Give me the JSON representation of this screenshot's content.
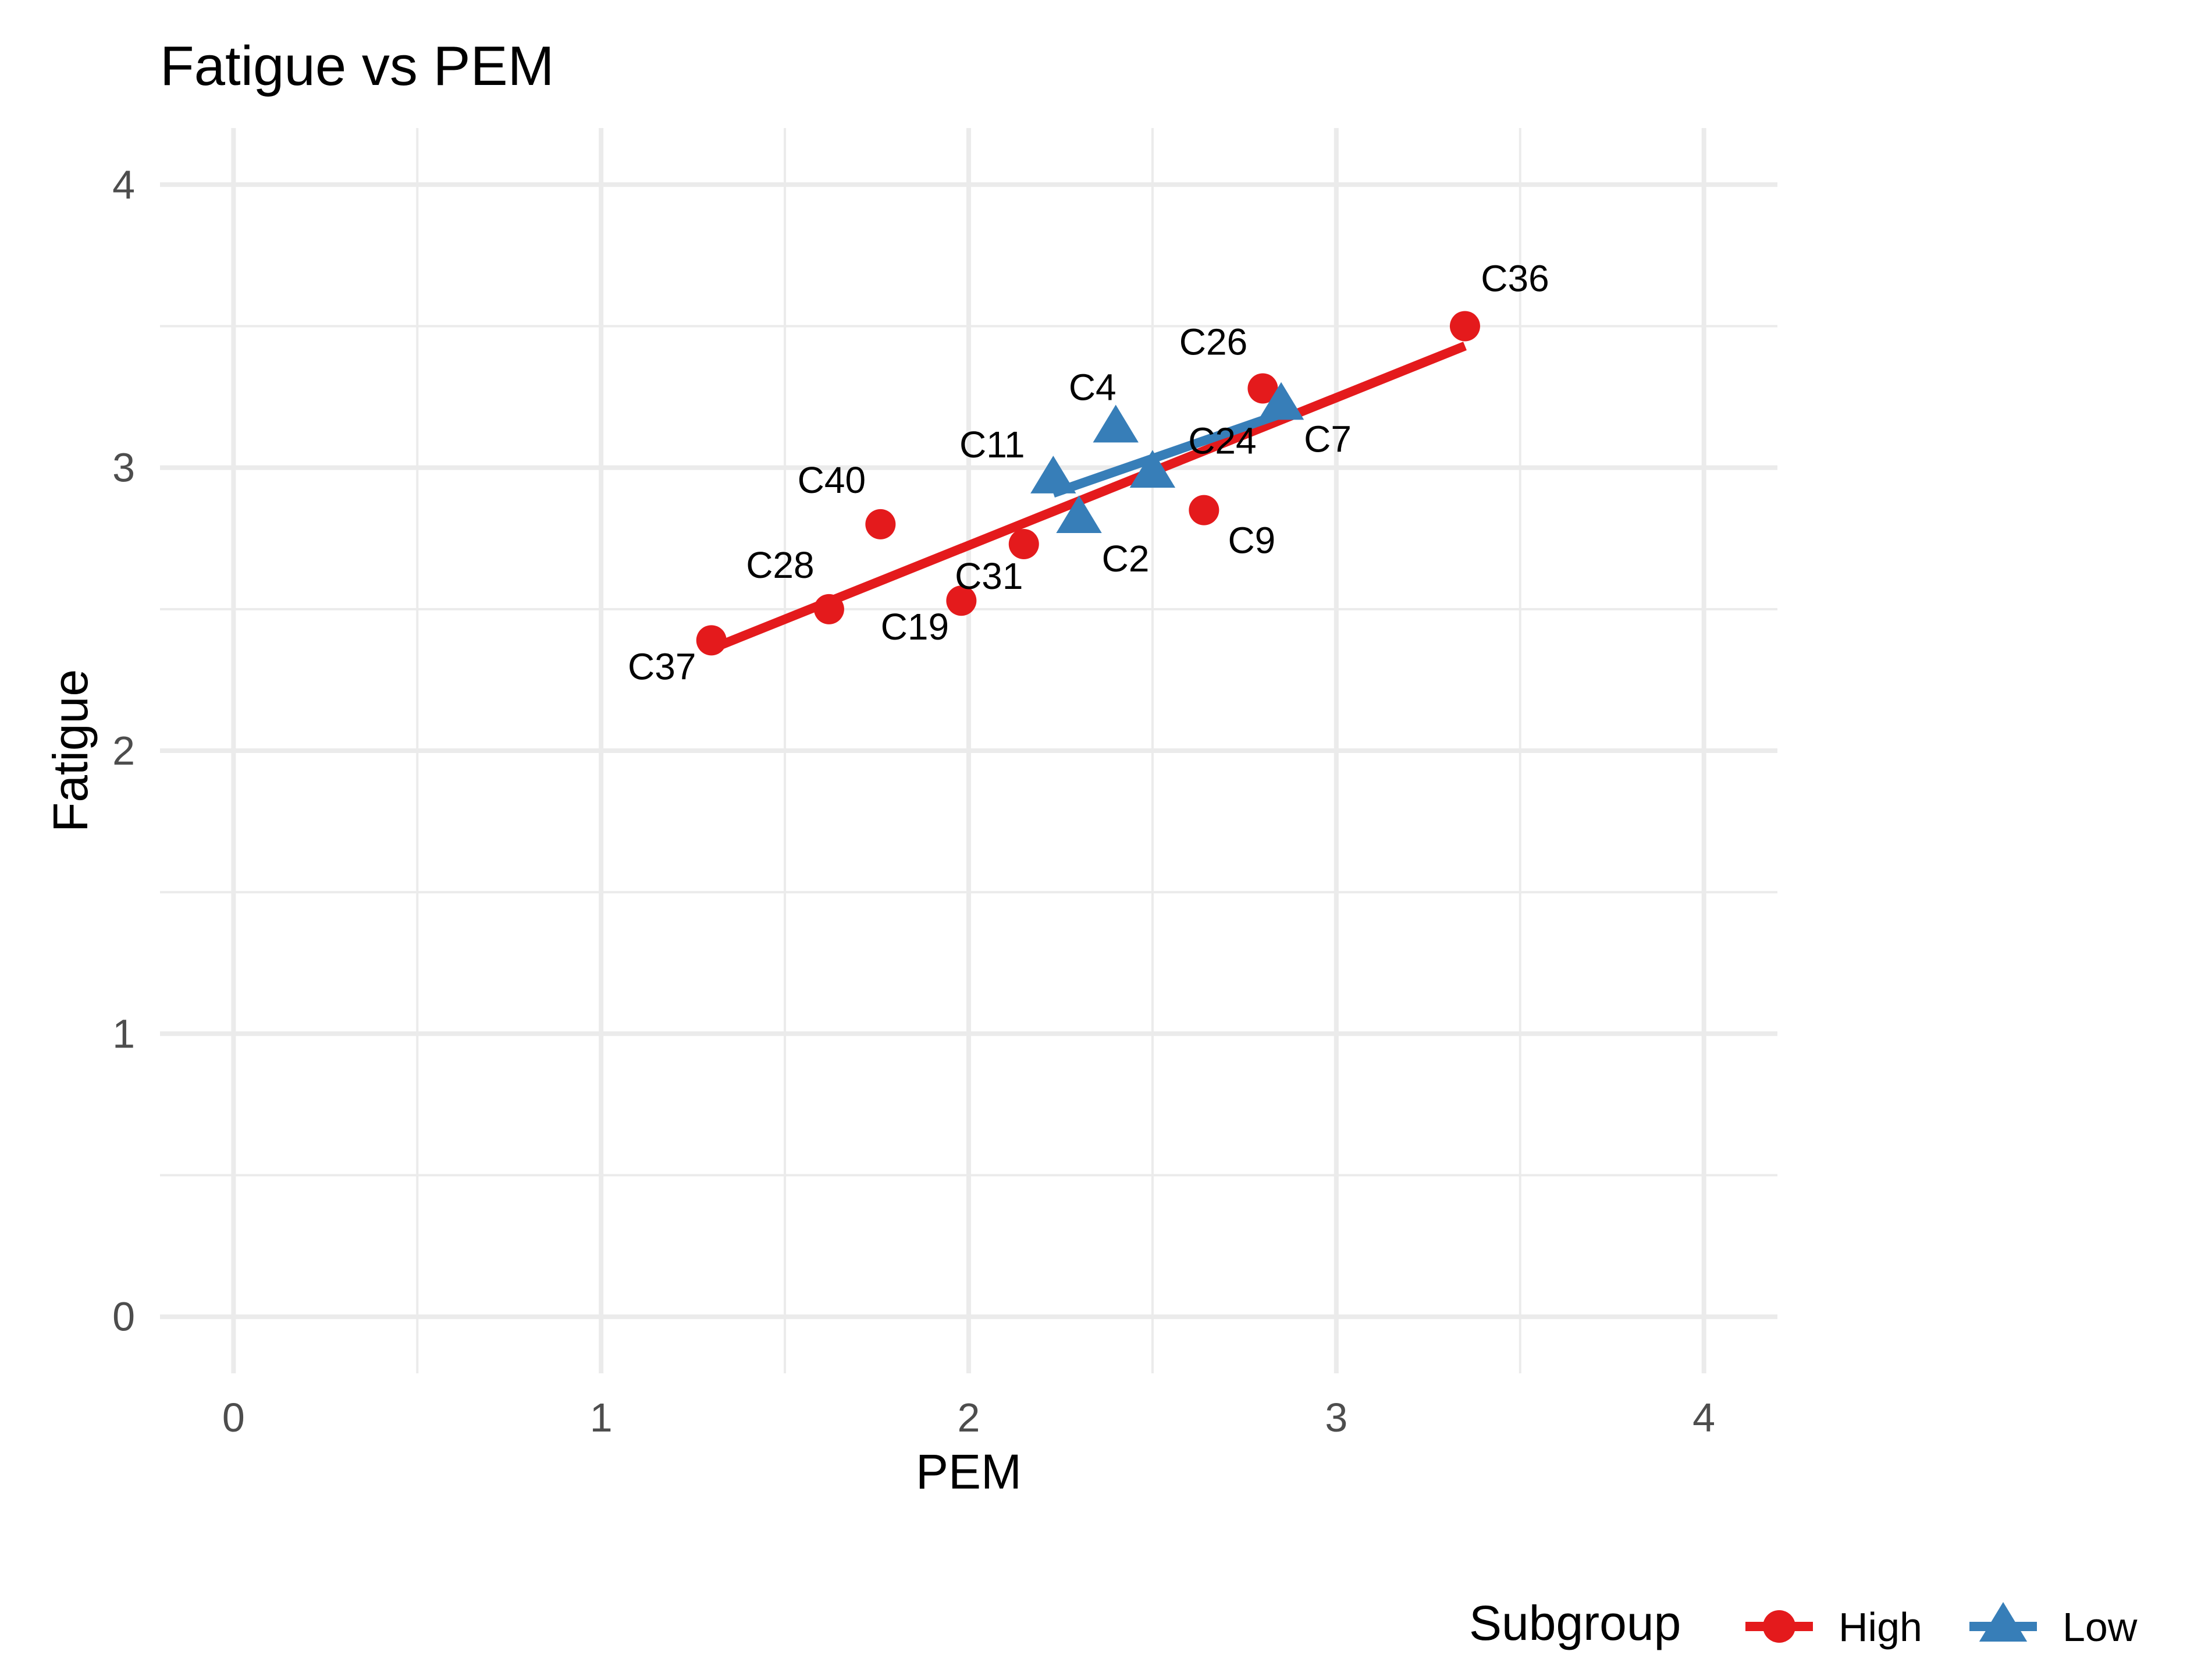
{
  "chart_data": {
    "type": "scatter",
    "title": "Fatigue vs PEM",
    "xlabel": "PEM",
    "ylabel": "Fatigue",
    "xlim": [
      -0.2,
      4.2
    ],
    "ylim": [
      -0.2,
      4.2
    ],
    "x_ticks": [
      "0",
      "1",
      "2",
      "3",
      "4"
    ],
    "y_ticks": [
      "0",
      "1",
      "2",
      "3",
      "4"
    ],
    "grid": true,
    "legend": {
      "title": "Subgroup",
      "position": "bottom-right",
      "entries": [
        "High",
        "Low"
      ]
    },
    "colors": {
      "High": "#e41a1c",
      "Low": "#377eb8"
    },
    "series": [
      {
        "name": "High",
        "marker": "circle",
        "points": [
          {
            "label": "C36",
            "x": 3.35,
            "y": 3.5
          },
          {
            "label": "C26",
            "x": 2.8,
            "y": 3.28
          },
          {
            "label": "C9",
            "x": 2.64,
            "y": 2.85
          },
          {
            "label": "C40",
            "x": 1.76,
            "y": 2.8
          },
          {
            "label": "C31",
            "x": 2.15,
            "y": 2.73
          },
          {
            "label": "C19",
            "x": 1.98,
            "y": 2.53
          },
          {
            "label": "C28",
            "x": 1.62,
            "y": 2.5
          },
          {
            "label": "C37",
            "x": 1.3,
            "y": 2.39
          }
        ],
        "fit": {
          "x": [
            1.3,
            3.35
          ],
          "y": [
            2.36,
            3.43
          ]
        }
      },
      {
        "name": "Low",
        "marker": "triangle",
        "points": [
          {
            "label": "C4",
            "x": 2.4,
            "y": 3.14
          },
          {
            "label": "C7",
            "x": 2.85,
            "y": 3.22
          },
          {
            "label": "C24",
            "x": 2.5,
            "y": 2.98
          },
          {
            "label": "C11",
            "x": 2.23,
            "y": 2.96
          },
          {
            "label": "C2",
            "x": 2.3,
            "y": 2.82
          }
        ],
        "fit": {
          "x": [
            2.23,
            2.85
          ],
          "y": [
            2.91,
            3.19
          ]
        }
      }
    ]
  }
}
